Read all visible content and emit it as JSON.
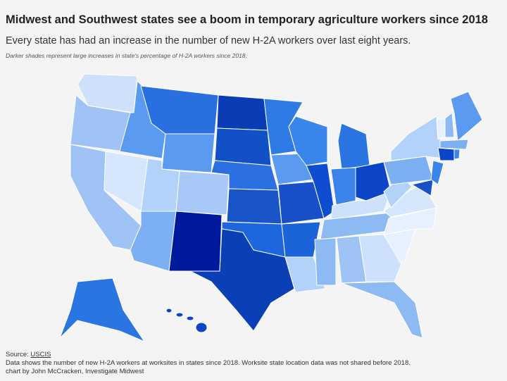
{
  "header": {
    "title": "Midwest and Southwest states see a boom in temporary agriculture workers since 2018",
    "subtitle": "Every state has had an increase in the number of new H-2A workers over last eight years.",
    "note": "Darker shades represent large increases in state's percentage of H-2A workers since 2018."
  },
  "footer": {
    "source_label": "Source:",
    "source_link": "USCIS",
    "description": "Data shows the number of new H-2A workers at worksites in states since 2018. Worksite state location data was not shared before 2018.",
    "credit": "chart by John McCracken, Investigate Midwest"
  }
}
